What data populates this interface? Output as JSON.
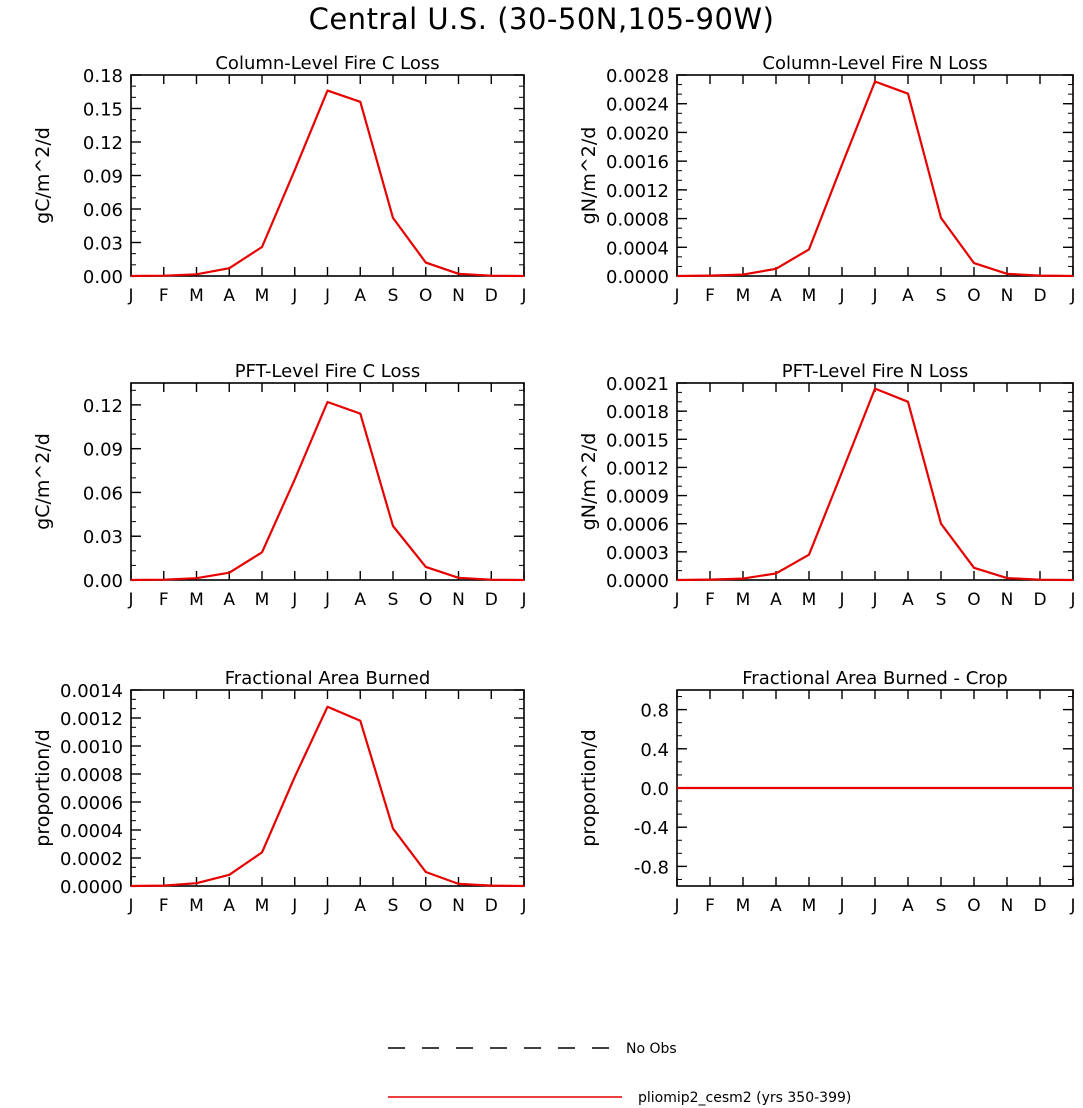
{
  "title": "Central U.S. (30-50N,105-90W)",
  "chart_data": [
    {
      "type": "line",
      "title": "Column-Level Fire C Loss",
      "ylabel": "gC/m^2/d",
      "categories": [
        "J",
        "F",
        "M",
        "A",
        "M",
        "J",
        "J",
        "A",
        "S",
        "O",
        "N",
        "D",
        "J"
      ],
      "ylim": [
        0,
        0.18
      ],
      "yticks": [
        "0.00",
        "0.03",
        "0.06",
        "0.09",
        "0.12",
        "0.15",
        "0.18"
      ],
      "series": [
        {
          "name": "pliomip2_cesm2 (yrs 350-399)",
          "color": "#e60000",
          "values": [
            0.0,
            0.0003,
            0.0015,
            0.007,
            0.026,
            0.095,
            0.166,
            0.156,
            0.052,
            0.012,
            0.002,
            0.0003,
            0.0
          ]
        }
      ]
    },
    {
      "type": "line",
      "title": "Column-Level Fire N Loss",
      "ylabel": "gN/m^2/d",
      "categories": [
        "J",
        "F",
        "M",
        "A",
        "M",
        "J",
        "J",
        "A",
        "S",
        "O",
        "N",
        "D",
        "J"
      ],
      "ylim": [
        0,
        0.0028
      ],
      "yticks": [
        "0.0000",
        "0.0004",
        "0.0008",
        "0.0012",
        "0.0016",
        "0.0020",
        "0.0024",
        "0.0028"
      ],
      "series": [
        {
          "name": "pliomip2_cesm2 (yrs 350-399)",
          "color": "#e60000",
          "values": [
            0.0,
            5e-06,
            2e-05,
            0.0001,
            0.00037,
            0.00155,
            0.00271,
            0.00254,
            0.00081,
            0.00018,
            3e-05,
            5e-06,
            0.0
          ]
        }
      ]
    },
    {
      "type": "line",
      "title": "PFT-Level Fire C Loss",
      "ylabel": "gC/m^2/d",
      "categories": [
        "J",
        "F",
        "M",
        "A",
        "M",
        "J",
        "J",
        "A",
        "S",
        "O",
        "N",
        "D",
        "J"
      ],
      "ylim": [
        0,
        0.135
      ],
      "yticks": [
        "0.00",
        "0.03",
        "0.06",
        "0.09",
        "0.12"
      ],
      "ytick_values": [
        0,
        0.03,
        0.06,
        0.09,
        0.12
      ],
      "series": [
        {
          "name": "pliomip2_cesm2 (yrs 350-399)",
          "color": "#e60000",
          "values": [
            0.0,
            0.0002,
            0.0012,
            0.005,
            0.019,
            0.069,
            0.122,
            0.114,
            0.037,
            0.009,
            0.0015,
            0.0002,
            0.0
          ]
        }
      ]
    },
    {
      "type": "line",
      "title": "PFT-Level Fire N Loss",
      "ylabel": "gN/m^2/d",
      "categories": [
        "J",
        "F",
        "M",
        "A",
        "M",
        "J",
        "J",
        "A",
        "S",
        "O",
        "N",
        "D",
        "J"
      ],
      "ylim": [
        0,
        0.0021
      ],
      "yticks": [
        "0.0000",
        "0.0003",
        "0.0006",
        "0.0009",
        "0.0012",
        "0.0015",
        "0.0018",
        "0.0021"
      ],
      "series": [
        {
          "name": "pliomip2_cesm2 (yrs 350-399)",
          "color": "#e60000",
          "values": [
            0.0,
            4e-06,
            1.5e-05,
            7e-05,
            0.00027,
            0.00115,
            0.00204,
            0.0019,
            0.0006,
            0.00013,
            2e-05,
            3e-06,
            0.0
          ]
        }
      ]
    },
    {
      "type": "line",
      "title": "Fractional Area Burned",
      "ylabel": "proportion/d",
      "categories": [
        "J",
        "F",
        "M",
        "A",
        "M",
        "J",
        "J",
        "A",
        "S",
        "O",
        "N",
        "D",
        "J"
      ],
      "ylim": [
        0,
        0.0014
      ],
      "yticks": [
        "0.0000",
        "0.0002",
        "0.0004",
        "0.0006",
        "0.0008",
        "0.0010",
        "0.0012",
        "0.0014"
      ],
      "series": [
        {
          "name": "pliomip2_cesm2 (yrs 350-399)",
          "color": "#e60000",
          "values": [
            0.0,
            3e-06,
            2e-05,
            8e-05,
            0.00024,
            0.00078,
            0.00128,
            0.00118,
            0.00041,
            0.0001,
            1.5e-05,
            3e-06,
            0.0
          ]
        }
      ]
    },
    {
      "type": "line",
      "title": "Fractional Area Burned - Crop",
      "ylabel": "proportion/d",
      "categories": [
        "J",
        "F",
        "M",
        "A",
        "M",
        "J",
        "J",
        "A",
        "S",
        "O",
        "N",
        "D",
        "J"
      ],
      "ylim": [
        -1,
        1
      ],
      "yticks": [
        "-0.8",
        "-0.4",
        "0.0",
        "0.4",
        "0.8"
      ],
      "ytick_values": [
        -0.8,
        -0.4,
        0.0,
        0.4,
        0.8
      ],
      "series": [
        {
          "name": "pliomip2_cesm2 (yrs 350-399)",
          "color": "#e60000",
          "values": [
            0,
            0,
            0,
            0,
            0,
            0,
            0,
            0,
            0,
            0,
            0,
            0,
            0
          ]
        }
      ]
    }
  ],
  "legend": [
    {
      "label": "No Obs",
      "style": "dashed",
      "color": "#000000"
    },
    {
      "label": "pliomip2_cesm2 (yrs 350-399)",
      "style": "solid",
      "color": "#e60000"
    }
  ]
}
